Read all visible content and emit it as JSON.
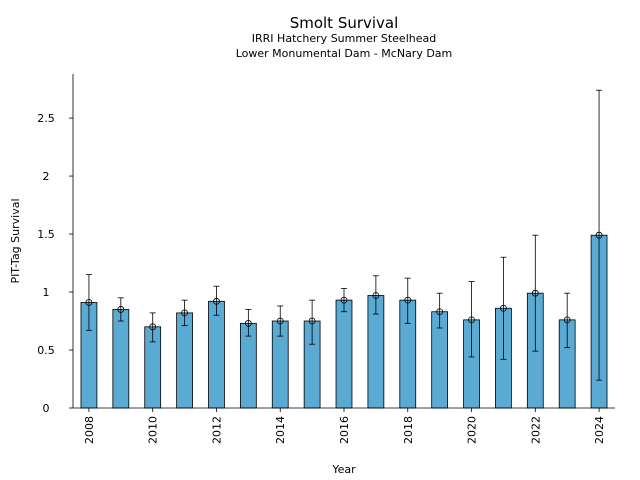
{
  "chart_data": {
    "type": "bar",
    "title": "Smolt Survival",
    "subtitle_lines": [
      "IRRI Hatchery Summer Steelhead",
      "Lower Monumental Dam - McNary Dam"
    ],
    "xlabel": "Year",
    "ylabel": "PIT-Tag Survival",
    "ylim": [
      0,
      2.88
    ],
    "yticks": [
      0,
      0.5,
      1,
      1.5,
      2,
      2.5
    ],
    "ytick_labels": [
      "0",
      "0.5",
      "1",
      "1.5",
      "2",
      "2.5"
    ],
    "xtick_years": [
      2008,
      2010,
      2012,
      2014,
      2016,
      2018,
      2020,
      2022,
      2024
    ],
    "grid": false,
    "bar_color": "#5aaad4",
    "categories": [
      2008,
      2009,
      2010,
      2011,
      2012,
      2013,
      2014,
      2015,
      2016,
      2017,
      2018,
      2019,
      2020,
      2021,
      2022,
      2023,
      2024
    ],
    "values": [
      0.91,
      0.85,
      0.7,
      0.82,
      0.92,
      0.73,
      0.75,
      0.75,
      0.93,
      0.97,
      0.93,
      0.83,
      0.76,
      0.86,
      0.99,
      0.76,
      1.49
    ],
    "error_low": [
      0.67,
      0.75,
      0.57,
      0.71,
      0.8,
      0.62,
      0.62,
      0.55,
      0.83,
      0.81,
      0.73,
      0.69,
      0.44,
      0.42,
      0.49,
      0.52,
      0.24
    ],
    "error_high": [
      1.15,
      0.95,
      0.82,
      0.93,
      1.05,
      0.85,
      0.88,
      0.93,
      1.03,
      1.14,
      1.12,
      0.99,
      1.09,
      1.3,
      1.49,
      0.99,
      2.74
    ]
  }
}
